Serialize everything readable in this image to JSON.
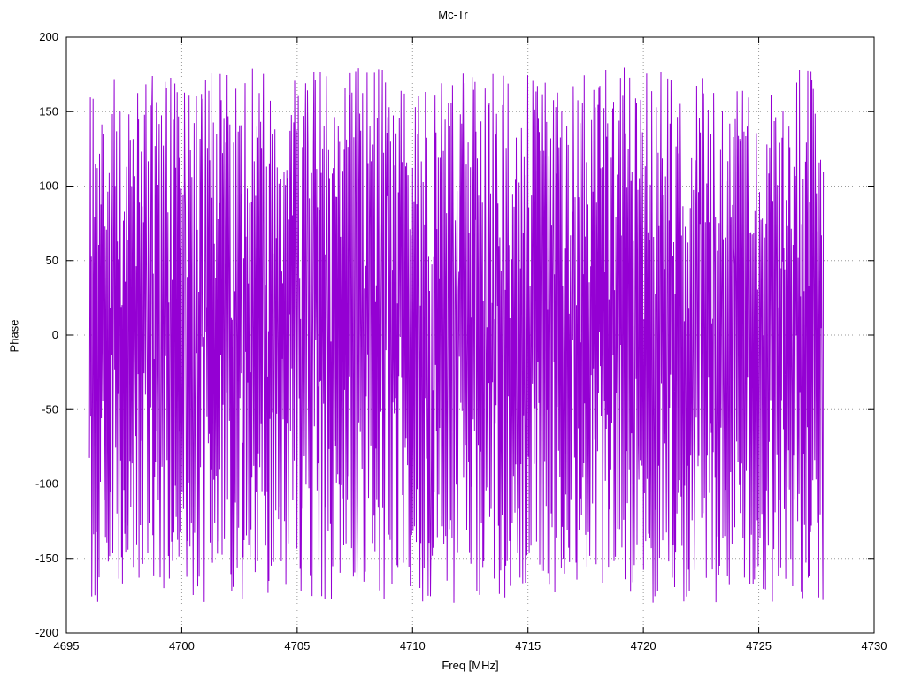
{
  "chart_data": {
    "type": "line",
    "title": "Mc-Tr",
    "xlabel": "Freq [MHz]",
    "ylabel": "Phase",
    "xlim": [
      4695,
      4730
    ],
    "ylim": [
      -200,
      200
    ],
    "x_ticks": [
      4695,
      4700,
      4705,
      4710,
      4715,
      4720,
      4725,
      4730
    ],
    "y_ticks": [
      -200,
      -150,
      -100,
      -50,
      0,
      50,
      100,
      150,
      200
    ],
    "grid": true,
    "grid_style": "dotted",
    "legend_position": "none",
    "background_color": "#ffffff",
    "line_color": "#9400d3",
    "series": [
      {
        "name": "Phase",
        "x_start": 4696.0,
        "x_end": 4727.8,
        "points": 1600,
        "generator": "wrapped-phase-noise",
        "seed": 1337,
        "y_wrap": [
          -180,
          180
        ],
        "description": "Rapidly wrapping phase trace; values sweep the full -180 to +180 degree range continuously across the band, rendering as a dense block of near-vertical violet strokes. Individual sample values are not resolvable at screenshot scale."
      }
    ]
  }
}
